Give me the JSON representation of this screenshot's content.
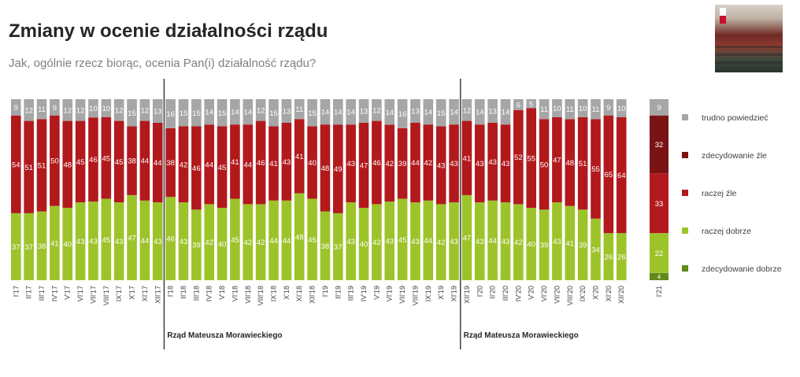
{
  "title": "Zmiany w ocenie działalności rządu",
  "subtitle": "Jak, ogólnie rzecz biorąc, ocenia Pan(i) działalność rządu?",
  "photo_icon": "sejm-chamber-photo-icon",
  "colors": {
    "trudno": "#a6a6a6",
    "zdecydowanie_zle": "#7b1315",
    "raczej_zle": "#b2191d",
    "raczej_dobrze": "#9dc32b",
    "zdecydowanie_dobrze": "#5f8a1a",
    "divider": "#404040"
  },
  "chart_data": [
    {
      "type": "bar",
      "stacked": true,
      "categories": [
        "I'17",
        "II'17",
        "III'17",
        "IV'17",
        "V'17",
        "VI'17",
        "VII'17",
        "VIII'17",
        "IX'17",
        "X'17",
        "XI'17",
        "XII'17",
        "I'18",
        "II'18",
        "III'18",
        "IV'18",
        "V'18",
        "VI'18",
        "VII'18",
        "VIII'18",
        "IX'18",
        "X'18",
        "XI'18",
        "XII'18",
        "I'19",
        "II'19",
        "III'19",
        "IV'19",
        "V'19",
        "VI'19",
        "VII'19",
        "VIII'19",
        "IX'19",
        "X'19",
        "XI'19",
        "XII'19",
        "I'20",
        "II'20",
        "III'20",
        "IV'20",
        "V'20",
        "VI'20",
        "VII'20",
        "VIII'20",
        "IX'20",
        "X'20",
        "XI'20",
        "XII'20"
      ],
      "series": [
        {
          "name": "dobrze",
          "values": [
            37,
            37,
            38,
            41,
            40,
            43,
            43,
            45,
            43,
            47,
            44,
            43,
            46,
            43,
            39,
            42,
            40,
            45,
            42,
            42,
            44,
            44,
            48,
            45,
            38,
            37,
            43,
            40,
            42,
            43,
            45,
            43,
            44,
            42,
            43,
            47,
            43,
            44,
            43,
            42,
            40,
            39,
            43,
            41,
            39,
            34,
            26,
            26
          ]
        },
        {
          "name": "źle",
          "values": [
            54,
            51,
            51,
            50,
            48,
            45,
            46,
            45,
            45,
            38,
            44,
            44,
            38,
            42,
            46,
            44,
            45,
            41,
            44,
            46,
            41,
            43,
            41,
            40,
            48,
            49,
            43,
            47,
            46,
            42,
            39,
            44,
            42,
            43,
            43,
            41,
            43,
            43,
            43,
            52,
            55,
            50,
            47,
            48,
            51,
            55,
            65,
            64
          ]
        },
        {
          "name": "trudno powiedzieć",
          "values": [
            9,
            12,
            11,
            9,
            12,
            12,
            10,
            10,
            12,
            15,
            12,
            13,
            16,
            15,
            15,
            14,
            15,
            14,
            14,
            12,
            15,
            13,
            11,
            15,
            14,
            14,
            14,
            13,
            12,
            14,
            16,
            13,
            14,
            15,
            14,
            12,
            14,
            13,
            14,
            6,
            5,
            11,
            10,
            11,
            10,
            11,
            9,
            10
          ]
        }
      ],
      "divider_after": [
        "XII'17",
        "XI'19"
      ],
      "period_labels": [
        {
          "text": "Rząd Mateusza Morawieckiego",
          "start": "I'18"
        },
        {
          "text": "Rząd Mateusza Morawieckiego",
          "start": "XII'19"
        }
      ],
      "ylim": [
        0,
        100
      ]
    },
    {
      "type": "bar",
      "stacked": true,
      "categories": [
        "I'21"
      ],
      "series": [
        {
          "name": "zdecydowanie dobrze",
          "values": [
            4
          ]
        },
        {
          "name": "raczej dobrze",
          "values": [
            22
          ]
        },
        {
          "name": "raczej źle",
          "values": [
            33
          ]
        },
        {
          "name": "zdecydowanie źle",
          "values": [
            32
          ]
        },
        {
          "name": "trudno powiedzieć",
          "values": [
            9
          ]
        }
      ],
      "ylim": [
        0,
        100
      ]
    }
  ],
  "legend": [
    {
      "label": "trudno powiedzieć",
      "color": "#a6a6a6"
    },
    {
      "label": "zdecydowanie źle",
      "color": "#7b1315"
    },
    {
      "label": "raczej źle",
      "color": "#b2191d"
    },
    {
      "label": "raczej dobrze",
      "color": "#9dc32b"
    },
    {
      "label": "zdecydowanie dobrze",
      "color": "#5f8a1a"
    }
  ]
}
